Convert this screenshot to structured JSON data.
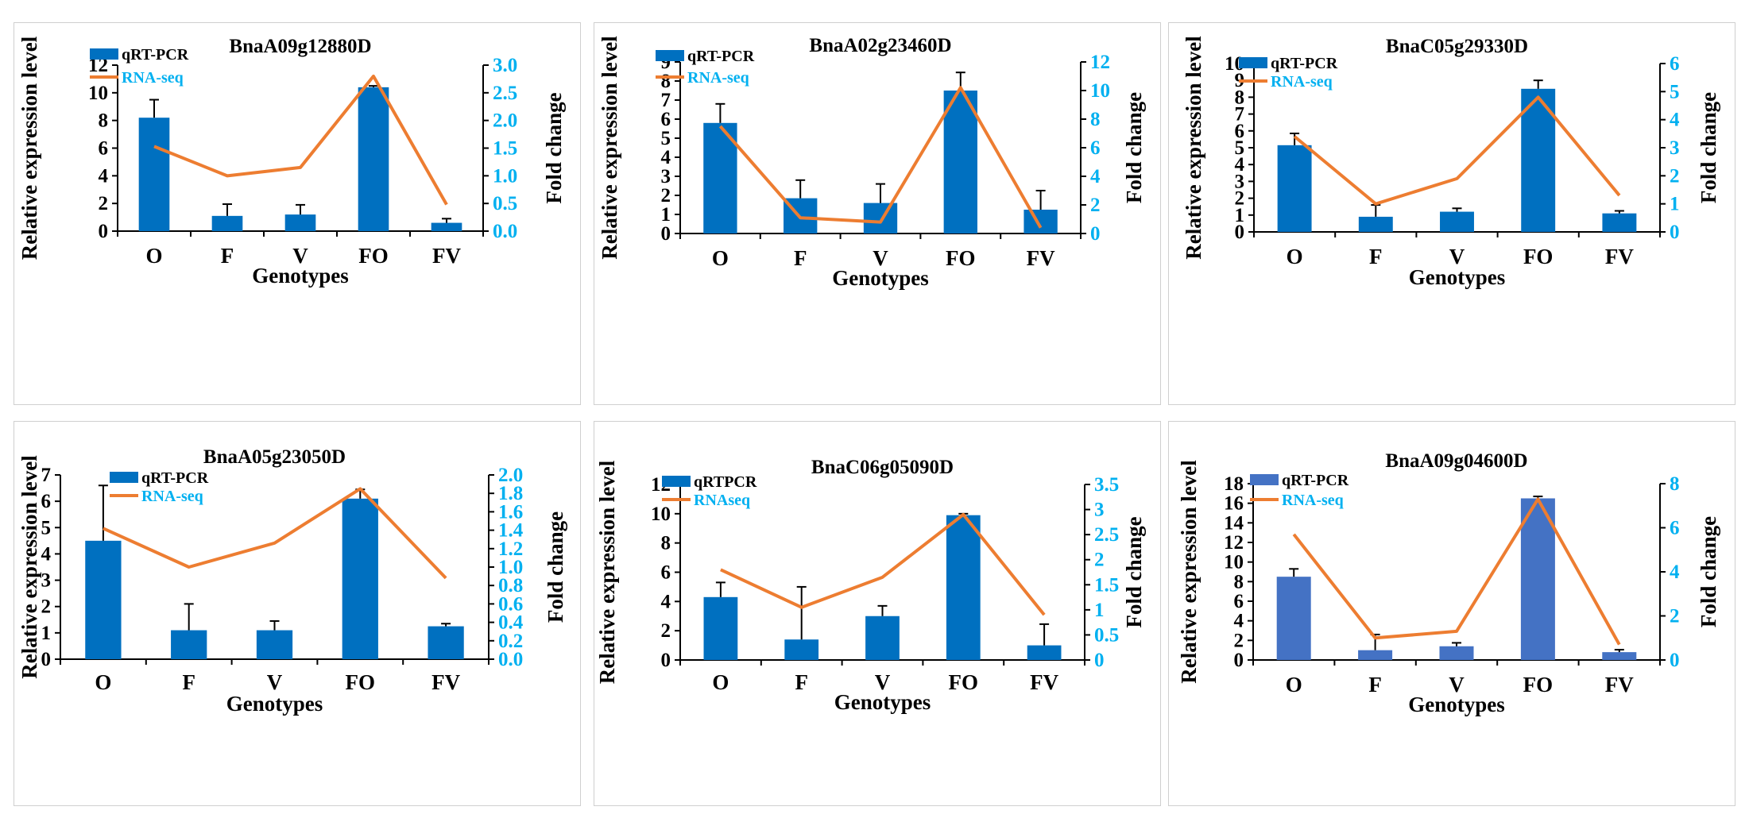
{
  "chart_data": [
    {
      "type": "bar",
      "title": "BnaA09g12880D",
      "xlabel": "Genotypes",
      "ylabel": "Relative expression level",
      "y2label": "Fold change",
      "categories": [
        "O",
        "F",
        "V",
        "FO",
        "FV"
      ],
      "ylim": [
        0,
        12
      ],
      "yticks": [
        "0",
        "2",
        "4",
        "6",
        "8",
        "10",
        "12"
      ],
      "y2lim": [
        0,
        3
      ],
      "y2ticks": [
        "0.0",
        "0.5",
        "1.0",
        "1.5",
        "2.0",
        "2.5",
        "3.0"
      ],
      "series": [
        {
          "name": "qRT-PCR",
          "type": "bar",
          "axis": "left",
          "color": "#0070c0",
          "values": [
            8.2,
            1.1,
            1.2,
            10.4,
            0.6
          ],
          "errors": [
            1.3,
            0.85,
            0.7,
            0.1,
            0.3
          ]
        },
        {
          "name": "RNA-seq",
          "type": "line",
          "axis": "right",
          "color": "#ed7d31",
          "values": [
            1.53,
            1.0,
            1.15,
            2.8,
            0.48
          ]
        }
      ]
    },
    {
      "type": "bar",
      "title": "BnaA02g23460D",
      "xlabel": "Genotypes",
      "ylabel": "Relative expression level",
      "y2label": "Fold change",
      "categories": [
        "O",
        "F",
        "V",
        "FO",
        "FV"
      ],
      "ylim": [
        0,
        9
      ],
      "yticks": [
        "0",
        "1",
        "2",
        "3",
        "4",
        "5",
        "6",
        "7",
        "8",
        "9"
      ],
      "y2lim": [
        0,
        12
      ],
      "y2ticks": [
        "0",
        "2",
        "4",
        "6",
        "8",
        "10",
        "12"
      ],
      "series": [
        {
          "name": "qRT-PCR",
          "type": "bar",
          "axis": "left",
          "color": "#0070c0",
          "values": [
            5.8,
            1.85,
            1.6,
            7.5,
            1.25
          ],
          "errors": [
            1.0,
            0.95,
            1.0,
            0.95,
            1.0
          ]
        },
        {
          "name": "RNA-seq",
          "type": "line",
          "axis": "right",
          "color": "#ed7d31",
          "values": [
            7.5,
            1.1,
            0.8,
            10.2,
            0.4
          ]
        }
      ]
    },
    {
      "type": "bar",
      "title": "BnaC05g29330D",
      "xlabel": "Genotypes",
      "ylabel": "Relative expression level",
      "y2label": "Fold change",
      "categories": [
        "O",
        "F",
        "V",
        "FO",
        "FV"
      ],
      "ylim": [
        0,
        10
      ],
      "yticks": [
        "0",
        "1",
        "2",
        "3",
        "4",
        "5",
        "6",
        "7",
        "8",
        "9",
        "10"
      ],
      "y2lim": [
        0,
        6
      ],
      "y2ticks": [
        "0",
        "1",
        "2",
        "3",
        "4",
        "5",
        "6"
      ],
      "series": [
        {
          "name": "qRT-PCR",
          "type": "bar",
          "axis": "left",
          "color": "#0070c0",
          "values": [
            5.15,
            0.9,
            1.2,
            8.5,
            1.1
          ],
          "errors": [
            0.7,
            0.7,
            0.2,
            0.5,
            0.15
          ]
        },
        {
          "name": "RNA-seq",
          "type": "line",
          "axis": "right",
          "color": "#ed7d31",
          "values": [
            3.4,
            1.0,
            1.9,
            4.8,
            1.3
          ]
        }
      ]
    },
    {
      "type": "bar",
      "title": "BnaA05g23050D",
      "xlabel": "Genotypes",
      "ylabel": "Relative expression level",
      "y2label": "Fold change",
      "categories": [
        "O",
        "F",
        "V",
        "FO",
        "FV"
      ],
      "ylim": [
        0,
        7
      ],
      "yticks": [
        "0",
        "1",
        "2",
        "3",
        "4",
        "5",
        "6",
        "7"
      ],
      "y2lim": [
        0,
        2
      ],
      "y2ticks": [
        "0.0",
        "0.2",
        "0.4",
        "0.6",
        "0.8",
        "1.0",
        "1.2",
        "1.4",
        "1.6",
        "1.8",
        "2.0"
      ],
      "series": [
        {
          "name": "qRT-PCR",
          "type": "bar",
          "axis": "left",
          "color": "#0070c0",
          "values": [
            4.5,
            1.1,
            1.1,
            6.1,
            1.25
          ],
          "errors": [
            2.1,
            1.0,
            0.35,
            0.35,
            0.1
          ]
        },
        {
          "name": "RNA-seq",
          "type": "line",
          "axis": "right",
          "color": "#ed7d31",
          "values": [
            1.42,
            1.0,
            1.26,
            1.85,
            0.88
          ]
        }
      ]
    },
    {
      "type": "bar",
      "title": "BnaC06g05090D",
      "xlabel": "Genotypes",
      "ylabel": "Relative expression level",
      "y2label": "Fold change",
      "categories": [
        "O",
        "F",
        "V",
        "FO",
        "FV"
      ],
      "ylim": [
        0,
        12
      ],
      "yticks": [
        "0",
        "2",
        "4",
        "6",
        "8",
        "10",
        "12"
      ],
      "y2lim": [
        0,
        3.5
      ],
      "y2ticks": [
        "0",
        "0.5",
        "1",
        "1.5",
        "2",
        "2.5",
        "3",
        "3.5"
      ],
      "series": [
        {
          "name": "qRTPCR",
          "type": "bar",
          "axis": "left",
          "color": "#0070c0",
          "values": [
            4.3,
            1.4,
            3.0,
            9.9,
            1.0
          ],
          "errors": [
            1.0,
            3.6,
            0.7,
            0.1,
            1.45
          ]
        },
        {
          "name": "RNAseq",
          "type": "line",
          "axis": "right",
          "color": "#ed7d31",
          "values": [
            1.8,
            1.05,
            1.65,
            2.9,
            0.9
          ]
        }
      ]
    },
    {
      "type": "bar",
      "title": "BnaA09g04600D",
      "xlabel": "Genotypes",
      "ylabel": "Relative expression level",
      "y2label": "Fold change",
      "categories": [
        "O",
        "F",
        "V",
        "FO",
        "FV"
      ],
      "ylim": [
        0,
        18
      ],
      "yticks": [
        "0",
        "2",
        "4",
        "6",
        "8",
        "10",
        "12",
        "14",
        "16",
        "18"
      ],
      "y2lim": [
        0,
        8
      ],
      "y2ticks": [
        "0",
        "2",
        "4",
        "6",
        "8"
      ],
      "series": [
        {
          "name": "qRT-PCR",
          "type": "bar",
          "axis": "left",
          "color": "#4472c4",
          "values": [
            8.5,
            1.0,
            1.4,
            16.5,
            0.8
          ],
          "errors": [
            0.8,
            1.6,
            0.35,
            0.2,
            0.25
          ]
        },
        {
          "name": "RNA-seq",
          "type": "line",
          "axis": "right",
          "color": "#ed7d31",
          "values": [
            5.7,
            1.0,
            1.3,
            7.3,
            0.7
          ]
        }
      ]
    }
  ]
}
